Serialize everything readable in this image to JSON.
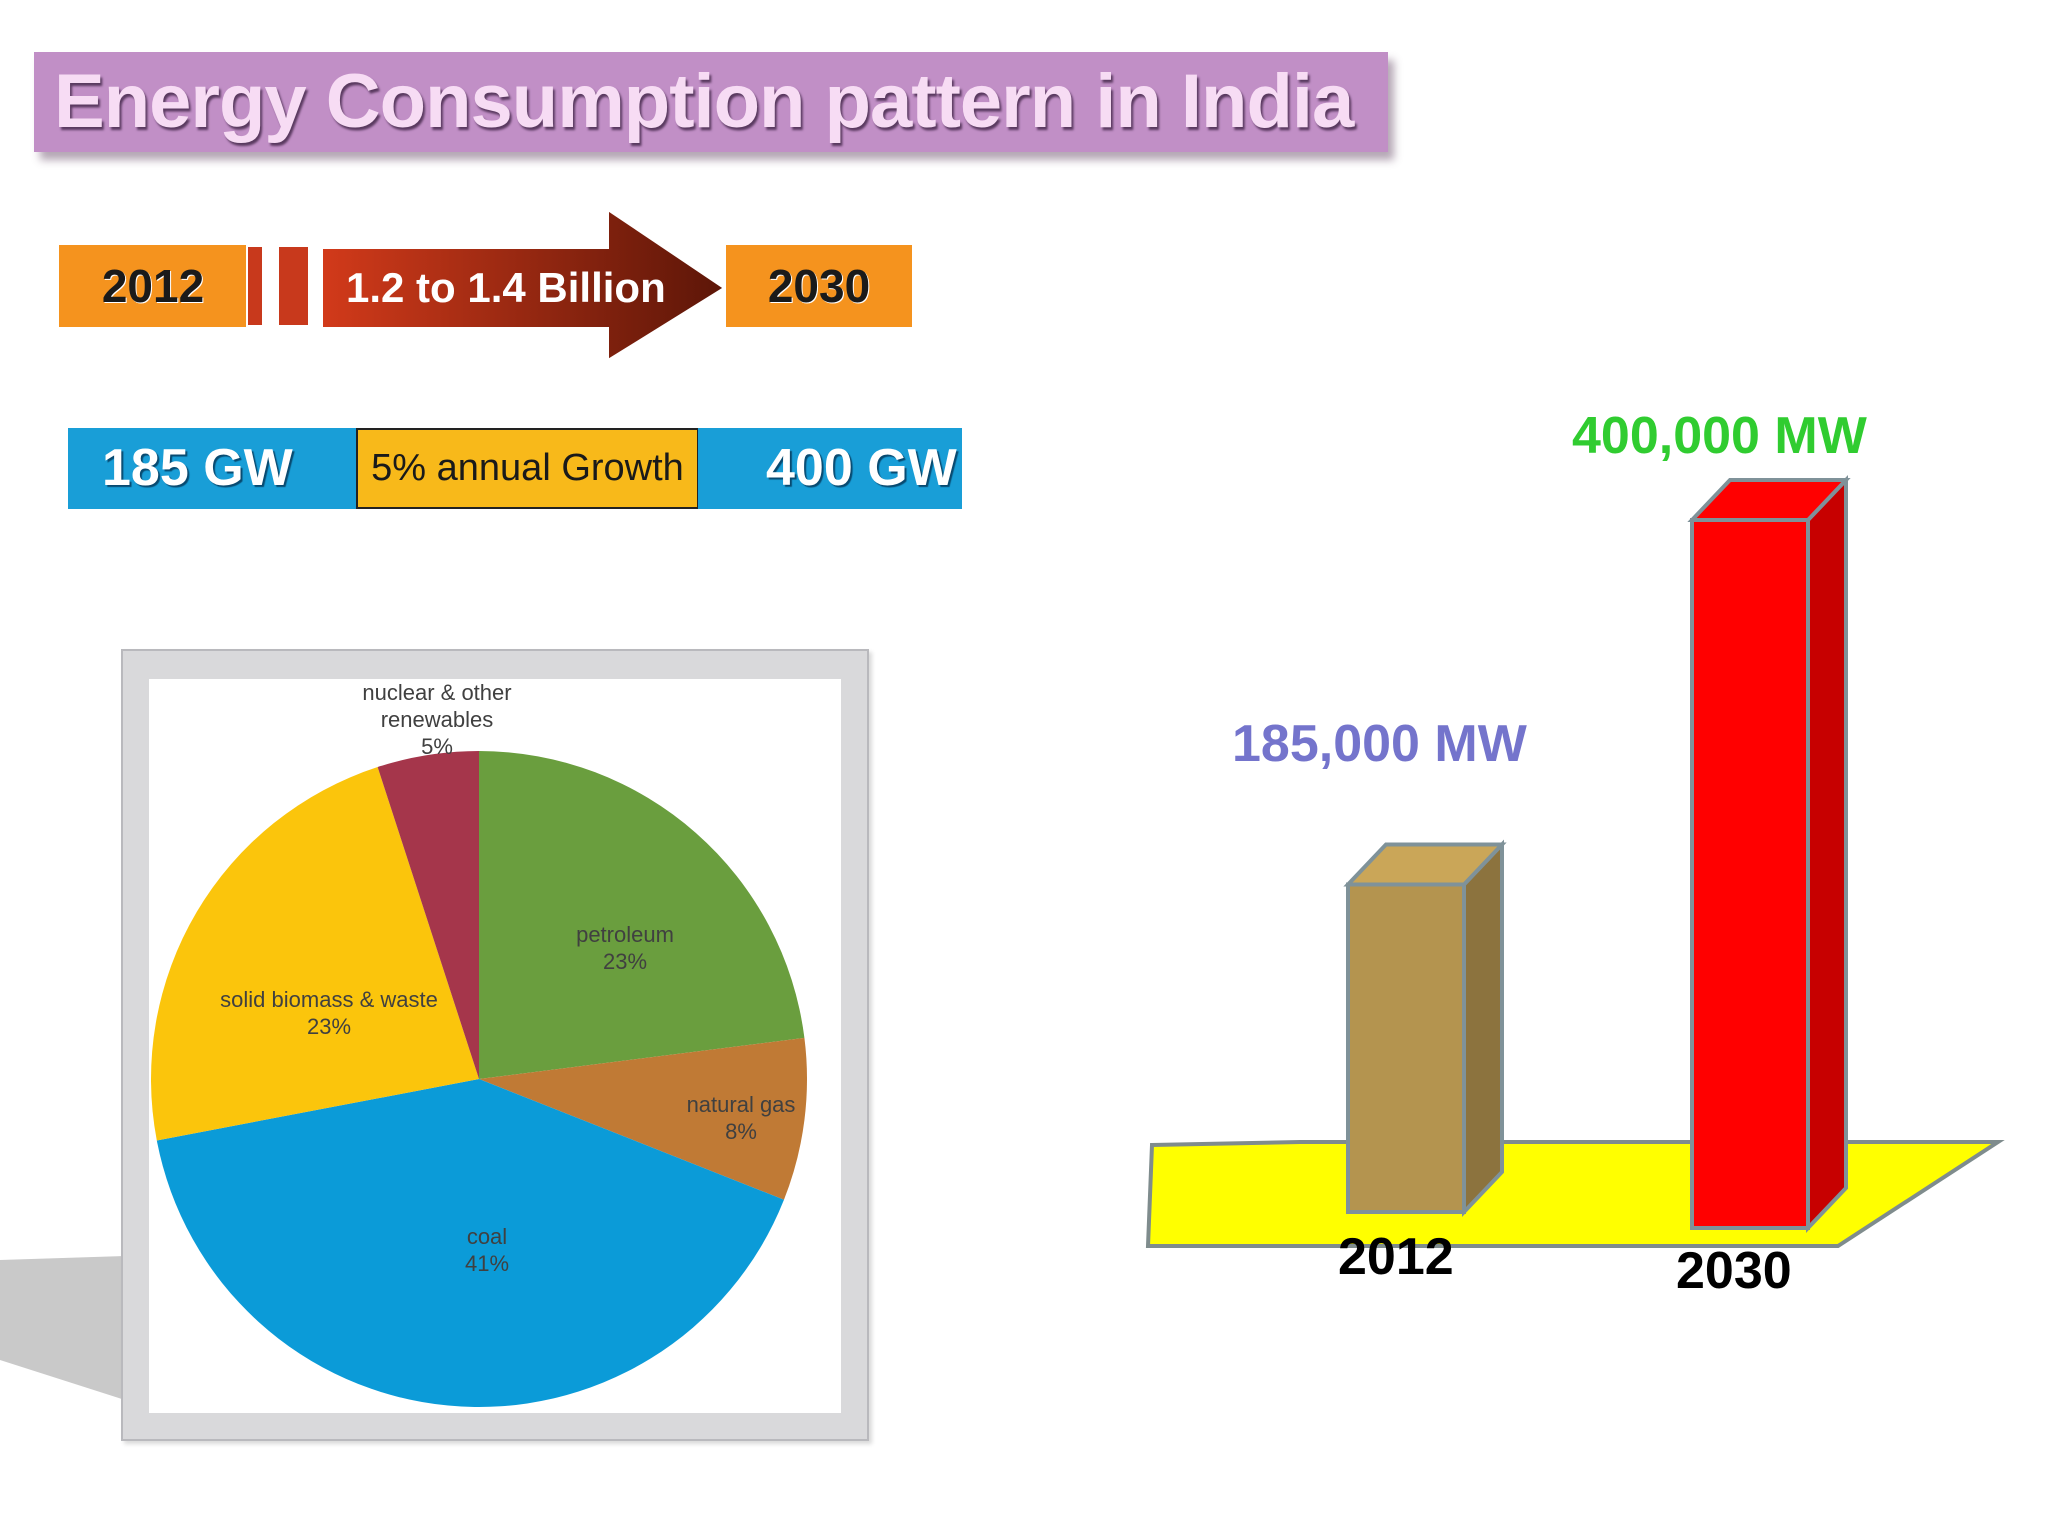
{
  "title": "Energy Consumption pattern in India",
  "population": {
    "start_year": "2012",
    "end_year": "2030",
    "label": "1.2 to 1.4 Billion"
  },
  "capacity": {
    "start": "185 GW",
    "growth": "5% annual Growth",
    "end": "400 GW"
  },
  "colors": {
    "title_bg": "#c18fc6",
    "orange": "#f5931e",
    "blue": "#199ed7",
    "growth_yellow": "#f8b91a"
  },
  "chart_data": [
    {
      "type": "pie",
      "title": "",
      "slices": [
        {
          "name": "petroleum",
          "label": "petroleum",
          "value": 23,
          "value_label": "23%",
          "color": "#6a9e3e"
        },
        {
          "name": "natural gas",
          "label": "natural gas",
          "value": 8,
          "value_label": "8%",
          "color": "#c07a35"
        },
        {
          "name": "coal",
          "label": "coal",
          "value": 41,
          "value_label": "41%",
          "color": "#0b9bd8"
        },
        {
          "name": "solid biomass & waste",
          "label": "solid biomass & waste",
          "value": 23,
          "value_label": "23%",
          "color": "#fbc50c"
        },
        {
          "name": "nuclear & other renewables",
          "label": "nuclear & other renewables",
          "value": 5,
          "value_label": "5%",
          "color": "#a5364b"
        }
      ]
    },
    {
      "type": "bar",
      "title": "",
      "categories": [
        "2012",
        "2030"
      ],
      "values": [
        185000,
        400000
      ],
      "value_labels": [
        "185,000 MW",
        "400,000 MW"
      ],
      "ylim": [
        0,
        400000
      ],
      "bar_colors": [
        "#b4944f",
        "#ff0000"
      ],
      "label_colors": [
        "#7474cc",
        "#30cc30"
      ],
      "floor_color": "#ffff00"
    }
  ]
}
